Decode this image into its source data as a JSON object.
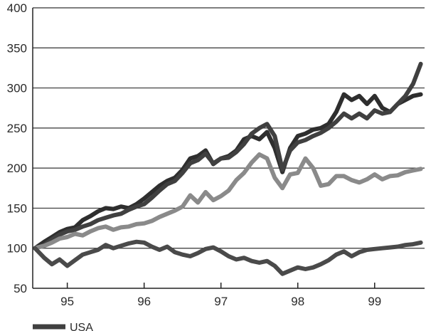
{
  "chart_data": {
    "type": "line",
    "title": "",
    "xlabel": "",
    "ylabel": "",
    "xlim": [
      1994.55,
      1999.65
    ],
    "ylim": [
      50,
      400
    ],
    "yticks": [
      50,
      100,
      150,
      200,
      250,
      300,
      350,
      400
    ],
    "xtick_labels": [
      "95",
      "96",
      "97",
      "98",
      "99"
    ],
    "xtick_positions": [
      1995,
      1996,
      1997,
      1998,
      1999
    ],
    "grid": "horizontal",
    "legend_position": "bottom-left",
    "legend": [
      {
        "label": "USA",
        "color": "#404040"
      }
    ],
    "x": [
      1994.58,
      1994.7,
      1994.8,
      1994.9,
      1995.0,
      1995.1,
      1995.2,
      1995.3,
      1995.4,
      1995.5,
      1995.6,
      1995.7,
      1995.8,
      1995.9,
      1996.0,
      1996.1,
      1996.2,
      1996.3,
      1996.4,
      1996.5,
      1996.6,
      1996.7,
      1996.8,
      1996.9,
      1997.0,
      1997.1,
      1997.2,
      1997.3,
      1997.4,
      1997.5,
      1997.6,
      1997.7,
      1997.8,
      1997.9,
      1998.0,
      1998.1,
      1998.2,
      1998.3,
      1998.4,
      1998.5,
      1998.6,
      1998.7,
      1998.8,
      1998.9,
      1999.0,
      1999.1,
      1999.2,
      1999.3,
      1999.4,
      1999.5,
      1999.6
    ],
    "series": [
      {
        "color": "#2e2e2e",
        "values": [
          100,
          108,
          114,
          120,
          124,
          126,
          135,
          140,
          146,
          150,
          149,
          152,
          150,
          155,
          162,
          170,
          178,
          184,
          188,
          198,
          212,
          215,
          222,
          205,
          212,
          215,
          222,
          236,
          240,
          236,
          245,
          225,
          195,
          225,
          240,
          243,
          248,
          250,
          255,
          270,
          292,
          285,
          290,
          280,
          290,
          275,
          270,
          280,
          285,
          290,
          292
        ]
      },
      {
        "color": "#404040",
        "values": [
          100,
          104,
          111,
          117,
          121,
          123,
          127,
          130,
          135,
          138,
          141,
          143,
          148,
          152,
          155,
          163,
          172,
          180,
          184,
          194,
          206,
          210,
          218,
          206,
          212,
          213,
          220,
          230,
          243,
          250,
          255,
          240,
          198,
          222,
          232,
          235,
          240,
          244,
          250,
          258,
          268,
          262,
          268,
          262,
          272,
          268,
          270,
          280,
          290,
          305,
          330
        ]
      },
      {
        "color": "#8a8a8a",
        "values": [
          100,
          103,
          107,
          112,
          114,
          118,
          116,
          121,
          125,
          127,
          123,
          126,
          127,
          130,
          131,
          134,
          139,
          143,
          147,
          152,
          166,
          157,
          170,
          160,
          165,
          172,
          185,
          194,
          207,
          217,
          212,
          188,
          175,
          192,
          194,
          212,
          200,
          178,
          180,
          190,
          190,
          185,
          182,
          186,
          192,
          186,
          190,
          191,
          195,
          197,
          199
        ]
      },
      {
        "color": "#4a4a4a",
        "values": [
          100,
          88,
          80,
          86,
          78,
          85,
          92,
          95,
          98,
          104,
          100,
          103,
          106,
          108,
          107,
          102,
          98,
          102,
          95,
          92,
          90,
          94,
          99,
          101,
          96,
          90,
          86,
          88,
          84,
          82,
          84,
          78,
          68,
          72,
          76,
          74,
          76,
          80,
          85,
          92,
          96,
          90,
          95,
          98,
          99,
          100,
          101,
          102,
          104,
          105,
          107
        ]
      }
    ]
  }
}
